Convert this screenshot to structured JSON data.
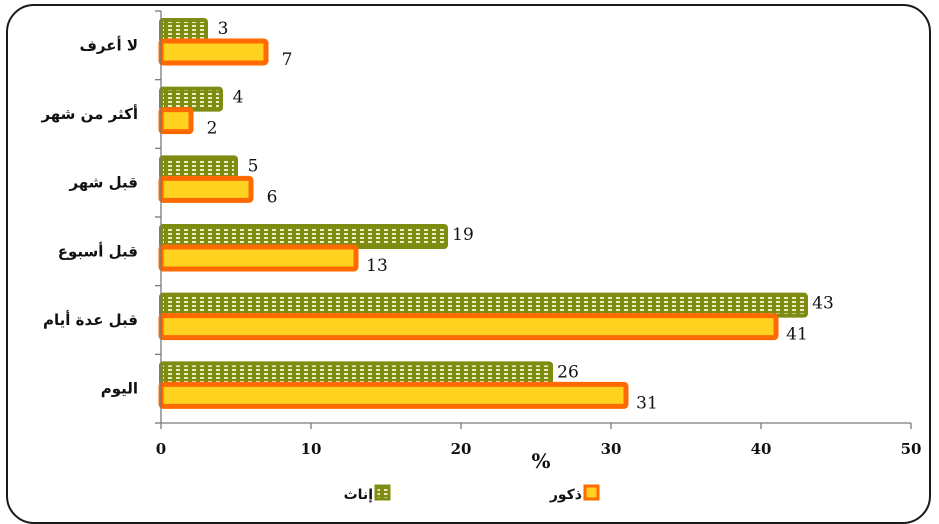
{
  "chart_data": {
    "type": "bar",
    "orientation": "horizontal",
    "categories": [
      "لا أعرف",
      "أكثر من شهر",
      "قبل شهر",
      "قبل أسبوع",
      "قبل عدة أيام",
      "اليوم"
    ],
    "series": [
      {
        "name": "إناث",
        "values": [
          3,
          4,
          5,
          19,
          43,
          26
        ],
        "color": "#7f8c12",
        "pattern": "#e8ecc0"
      },
      {
        "name": "ذكور",
        "values": [
          7,
          2,
          6,
          13,
          41,
          31
        ],
        "color": "#ff6a00",
        "fill": "#ffd21f"
      }
    ],
    "xlabel": "%",
    "xlim": [
      0,
      50
    ],
    "ticks": [
      "0",
      "10",
      "20",
      "30",
      "40",
      "50"
    ],
    "grid": false,
    "legend": "bottom"
  }
}
